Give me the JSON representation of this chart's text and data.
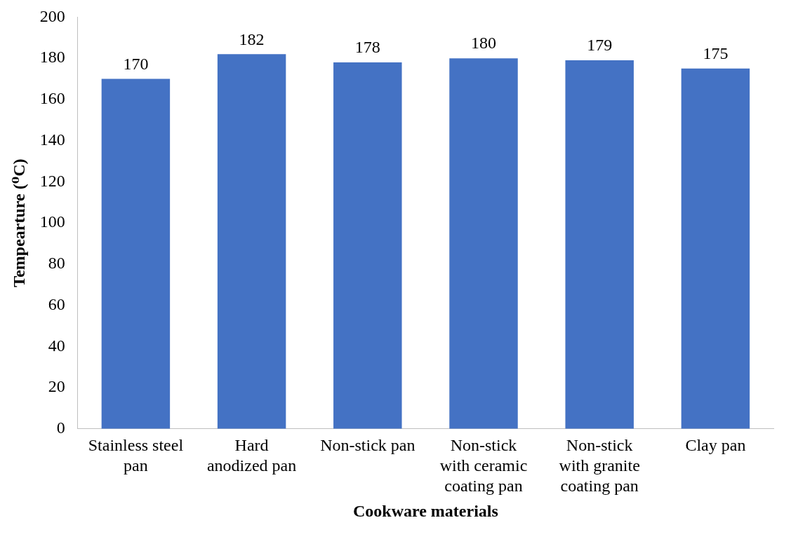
{
  "chart_data": {
    "type": "bar",
    "xlabel": "Cookware materials",
    "ylabel": "Tempearture (⁰C)",
    "categories": [
      "Stainless steel pan",
      "Hard anodized pan",
      "Non-stick pan",
      "Non-stick with ceramic coating pan",
      "Non-stick with granite coating pan",
      "Clay pan"
    ],
    "values": [
      170,
      182,
      178,
      180,
      179,
      175
    ],
    "color": "#4472c4",
    "ylim": [
      0,
      200
    ],
    "yticks": [
      0,
      20,
      40,
      60,
      80,
      100,
      120,
      140,
      160,
      180,
      200
    ],
    "data_labels": true,
    "grid": false,
    "legend": false
  }
}
